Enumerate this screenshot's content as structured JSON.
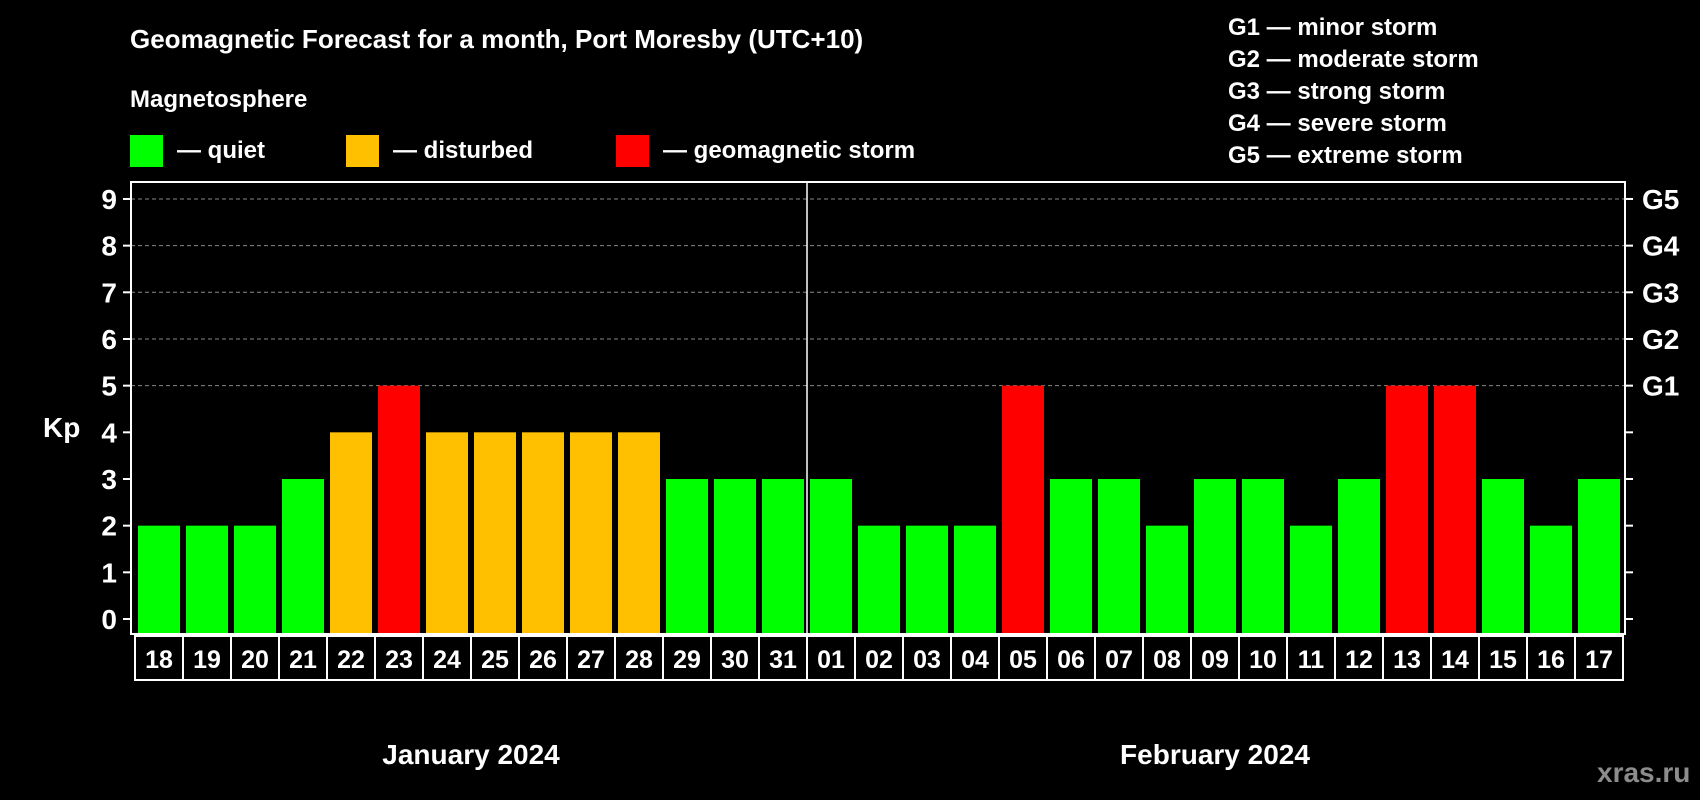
{
  "title": "Geomagnetic Forecast for a month, Port Moresby (UTC+10)",
  "legend": {
    "heading": "Magnetosphere",
    "items": [
      {
        "label": "— quiet",
        "color": "#00ff00"
      },
      {
        "label": "— disturbed",
        "color": "#ffc000"
      },
      {
        "label": "— geomagnetic storm",
        "color": "#ff0000"
      }
    ]
  },
  "storm_scale": [
    "G1 — minor storm",
    "G2 — moderate storm",
    "G3 — strong storm",
    "G4 — severe storm",
    "G5 — extreme storm"
  ],
  "watermark": "xras.ru",
  "chart_data": {
    "type": "bar",
    "title": "Geomagnetic Forecast for a month, Port Moresby (UTC+10)",
    "ylabel": "Kp",
    "ylim": [
      0,
      9
    ],
    "yticks": [
      "0",
      "1",
      "2",
      "3",
      "4",
      "5",
      "6",
      "7",
      "8",
      "9"
    ],
    "right_ticks": {
      "5": "G1",
      "6": "G2",
      "7": "G3",
      "8": "G4",
      "9": "G5"
    },
    "grid": "dashed horizontal at 5-9",
    "months": [
      {
        "label": "January 2024",
        "days": 14
      },
      {
        "label": "February 2024",
        "days": 17
      }
    ],
    "categories": [
      "18",
      "19",
      "20",
      "21",
      "22",
      "23",
      "24",
      "25",
      "26",
      "27",
      "28",
      "29",
      "30",
      "31",
      "01",
      "02",
      "03",
      "04",
      "05",
      "06",
      "07",
      "08",
      "09",
      "10",
      "11",
      "12",
      "13",
      "14",
      "15",
      "16",
      "17"
    ],
    "values": [
      2,
      2,
      2,
      3,
      4,
      5,
      4,
      4,
      4,
      4,
      4,
      3,
      3,
      3,
      3,
      2,
      2,
      2,
      5,
      3,
      3,
      2,
      3,
      3,
      2,
      3,
      5,
      5,
      3,
      2,
      3
    ],
    "colors": {
      "quiet": "#00ff00",
      "disturbed": "#ffc000",
      "storm": "#ff0000"
    }
  }
}
